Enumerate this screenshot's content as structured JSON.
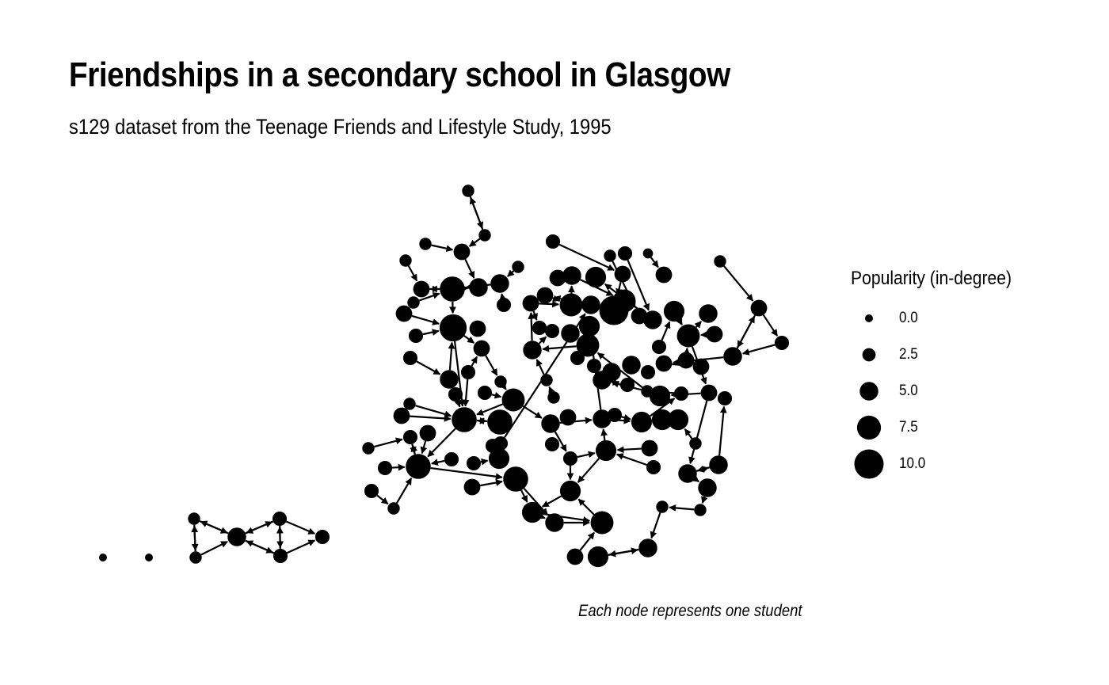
{
  "title": "Friendships in a secondary school in Glasgow",
  "subtitle": "s129 dataset from the Teenage Friends and Lifestyle Study, 1995",
  "caption": "Each node represents one student",
  "legend": {
    "title": "Popularity (in-degree)",
    "items": [
      {
        "label": "0.0",
        "value": 0
      },
      {
        "label": "2.5",
        "value": 2.5
      },
      {
        "label": "5.0",
        "value": 5
      },
      {
        "label": "7.5",
        "value": 7.5
      },
      {
        "label": "10.0",
        "value": 10
      }
    ]
  },
  "colors": {
    "node": "#000000",
    "edge": "#000000",
    "background": "#ffffff"
  }
}
